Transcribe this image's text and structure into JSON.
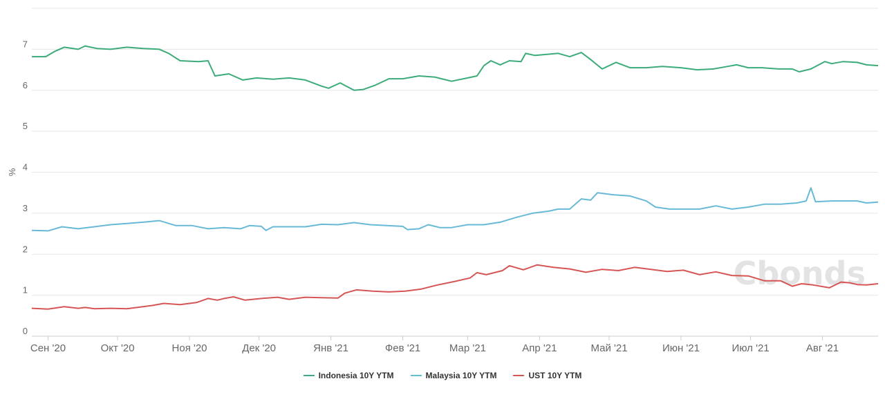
{
  "chart_data": {
    "type": "line",
    "ylabel": "%",
    "ylim": [
      0,
      8
    ],
    "yticks": [
      "0",
      "1",
      "2",
      "3",
      "4",
      "5",
      "6",
      "7"
    ],
    "xticks": [
      "Сен '20",
      "Окт '20",
      "Ноя '20",
      "Дек '20",
      "Янв '21",
      "Фев '21",
      "Мар '21",
      "Апр '21",
      "Май '21",
      "Июн '21",
      "Июл '21",
      "Авг '21"
    ],
    "xlim": [
      "2020-08-25",
      "2021-08-25"
    ],
    "grid": "horizontal",
    "legend": "bottom-center",
    "watermark": "Cbonds",
    "series": [
      {
        "name": "Indonesia 10Y YTM",
        "color": "#3bab78",
        "points": [
          [
            "2020-08-25",
            6.82
          ],
          [
            "2020-08-31",
            6.82
          ],
          [
            "2020-09-04",
            6.95
          ],
          [
            "2020-09-08",
            7.05
          ],
          [
            "2020-09-14",
            7.0
          ],
          [
            "2020-09-17",
            7.08
          ],
          [
            "2020-09-22",
            7.02
          ],
          [
            "2020-09-28",
            7.0
          ],
          [
            "2020-10-05",
            7.05
          ],
          [
            "2020-10-12",
            7.02
          ],
          [
            "2020-10-19",
            7.0
          ],
          [
            "2020-10-23",
            6.9
          ],
          [
            "2020-10-28",
            6.72
          ],
          [
            "2020-11-05",
            6.7
          ],
          [
            "2020-11-09",
            6.72
          ],
          [
            "2020-11-12",
            6.35
          ],
          [
            "2020-11-18",
            6.4
          ],
          [
            "2020-11-24",
            6.25
          ],
          [
            "2020-11-30",
            6.3
          ],
          [
            "2020-12-07",
            6.27
          ],
          [
            "2020-12-14",
            6.3
          ],
          [
            "2020-12-21",
            6.25
          ],
          [
            "2020-12-28",
            6.1
          ],
          [
            "2020-12-31",
            6.05
          ],
          [
            "2021-01-05",
            6.18
          ],
          [
            "2021-01-11",
            6.0
          ],
          [
            "2021-01-15",
            6.02
          ],
          [
            "2021-01-20",
            6.12
          ],
          [
            "2021-01-26",
            6.28
          ],
          [
            "2021-02-01",
            6.28
          ],
          [
            "2021-02-08",
            6.35
          ],
          [
            "2021-02-15",
            6.32
          ],
          [
            "2021-02-22",
            6.22
          ],
          [
            "2021-03-01",
            6.3
          ],
          [
            "2021-03-05",
            6.35
          ],
          [
            "2021-03-08",
            6.6
          ],
          [
            "2021-03-11",
            6.72
          ],
          [
            "2021-03-15",
            6.62
          ],
          [
            "2021-03-19",
            6.72
          ],
          [
            "2021-03-24",
            6.7
          ],
          [
            "2021-03-26",
            6.9
          ],
          [
            "2021-03-30",
            6.85
          ],
          [
            "2021-04-05",
            6.88
          ],
          [
            "2021-04-09",
            6.9
          ],
          [
            "2021-04-14",
            6.82
          ],
          [
            "2021-04-19",
            6.92
          ],
          [
            "2021-04-23",
            6.75
          ],
          [
            "2021-04-28",
            6.52
          ],
          [
            "2021-05-04",
            6.68
          ],
          [
            "2021-05-10",
            6.55
          ],
          [
            "2021-05-17",
            6.55
          ],
          [
            "2021-05-24",
            6.58
          ],
          [
            "2021-06-01",
            6.55
          ],
          [
            "2021-06-08",
            6.5
          ],
          [
            "2021-06-15",
            6.52
          ],
          [
            "2021-06-21",
            6.58
          ],
          [
            "2021-06-25",
            6.62
          ],
          [
            "2021-06-30",
            6.55
          ],
          [
            "2021-07-06",
            6.55
          ],
          [
            "2021-07-13",
            6.52
          ],
          [
            "2021-07-19",
            6.52
          ],
          [
            "2021-07-22",
            6.45
          ],
          [
            "2021-07-27",
            6.52
          ],
          [
            "2021-08-02",
            6.7
          ],
          [
            "2021-08-05",
            6.65
          ],
          [
            "2021-08-10",
            6.7
          ],
          [
            "2021-08-16",
            6.68
          ],
          [
            "2021-08-20",
            6.62
          ],
          [
            "2021-08-25",
            6.6
          ]
        ]
      },
      {
        "name": "Malaysia 10Y YTM",
        "color": "#68b9d6",
        "points": [
          [
            "2020-08-25",
            2.58
          ],
          [
            "2020-09-01",
            2.57
          ],
          [
            "2020-09-07",
            2.67
          ],
          [
            "2020-09-14",
            2.62
          ],
          [
            "2020-09-21",
            2.67
          ],
          [
            "2020-09-28",
            2.72
          ],
          [
            "2020-10-05",
            2.75
          ],
          [
            "2020-10-12",
            2.78
          ],
          [
            "2020-10-19",
            2.82
          ],
          [
            "2020-10-26",
            2.7
          ],
          [
            "2020-11-02",
            2.7
          ],
          [
            "2020-11-09",
            2.62
          ],
          [
            "2020-11-16",
            2.65
          ],
          [
            "2020-11-23",
            2.62
          ],
          [
            "2020-11-27",
            2.7
          ],
          [
            "2020-12-02",
            2.68
          ],
          [
            "2020-12-04",
            2.58
          ],
          [
            "2020-12-07",
            2.67
          ],
          [
            "2020-12-14",
            2.67
          ],
          [
            "2020-12-21",
            2.67
          ],
          [
            "2020-12-28",
            2.73
          ],
          [
            "2021-01-04",
            2.72
          ],
          [
            "2021-01-11",
            2.77
          ],
          [
            "2021-01-18",
            2.72
          ],
          [
            "2021-01-25",
            2.7
          ],
          [
            "2021-02-01",
            2.68
          ],
          [
            "2021-02-03",
            2.6
          ],
          [
            "2021-02-08",
            2.62
          ],
          [
            "2021-02-12",
            2.72
          ],
          [
            "2021-02-17",
            2.65
          ],
          [
            "2021-02-22",
            2.65
          ],
          [
            "2021-03-01",
            2.72
          ],
          [
            "2021-03-08",
            2.72
          ],
          [
            "2021-03-15",
            2.78
          ],
          [
            "2021-03-22",
            2.9
          ],
          [
            "2021-03-29",
            3.0
          ],
          [
            "2021-04-05",
            3.05
          ],
          [
            "2021-04-09",
            3.1
          ],
          [
            "2021-04-14",
            3.1
          ],
          [
            "2021-04-19",
            3.35
          ],
          [
            "2021-04-23",
            3.32
          ],
          [
            "2021-04-26",
            3.5
          ],
          [
            "2021-05-03",
            3.45
          ],
          [
            "2021-05-10",
            3.42
          ],
          [
            "2021-05-17",
            3.3
          ],
          [
            "2021-05-21",
            3.15
          ],
          [
            "2021-05-27",
            3.1
          ],
          [
            "2021-06-02",
            3.1
          ],
          [
            "2021-06-09",
            3.1
          ],
          [
            "2021-06-16",
            3.18
          ],
          [
            "2021-06-23",
            3.1
          ],
          [
            "2021-06-30",
            3.15
          ],
          [
            "2021-07-07",
            3.22
          ],
          [
            "2021-07-14",
            3.22
          ],
          [
            "2021-07-21",
            3.25
          ],
          [
            "2021-07-25",
            3.3
          ],
          [
            "2021-07-27",
            3.62
          ],
          [
            "2021-07-29",
            3.28
          ],
          [
            "2021-08-05",
            3.3
          ],
          [
            "2021-08-12",
            3.3
          ],
          [
            "2021-08-16",
            3.3
          ],
          [
            "2021-08-20",
            3.25
          ],
          [
            "2021-08-25",
            3.27
          ]
        ]
      },
      {
        "name": "UST 10Y YTM",
        "color": "#d65454",
        "points": [
          [
            "2020-08-25",
            0.68
          ],
          [
            "2020-09-01",
            0.66
          ],
          [
            "2020-09-08",
            0.72
          ],
          [
            "2020-09-14",
            0.68
          ],
          [
            "2020-09-17",
            0.7
          ],
          [
            "2020-09-21",
            0.67
          ],
          [
            "2020-09-28",
            0.68
          ],
          [
            "2020-10-05",
            0.67
          ],
          [
            "2020-10-12",
            0.72
          ],
          [
            "2020-10-16",
            0.75
          ],
          [
            "2020-10-21",
            0.8
          ],
          [
            "2020-10-28",
            0.77
          ],
          [
            "2020-11-04",
            0.82
          ],
          [
            "2020-11-09",
            0.92
          ],
          [
            "2020-11-13",
            0.88
          ],
          [
            "2020-11-16",
            0.92
          ],
          [
            "2020-11-20",
            0.96
          ],
          [
            "2020-11-25",
            0.88
          ],
          [
            "2020-12-02",
            0.92
          ],
          [
            "2020-12-09",
            0.95
          ],
          [
            "2020-12-14",
            0.9
          ],
          [
            "2020-12-21",
            0.95
          ],
          [
            "2020-12-28",
            0.94
          ],
          [
            "2021-01-04",
            0.93
          ],
          [
            "2021-01-07",
            1.05
          ],
          [
            "2021-01-12",
            1.13
          ],
          [
            "2021-01-19",
            1.1
          ],
          [
            "2021-01-26",
            1.08
          ],
          [
            "2021-02-02",
            1.1
          ],
          [
            "2021-02-09",
            1.15
          ],
          [
            "2021-02-16",
            1.25
          ],
          [
            "2021-02-23",
            1.33
          ],
          [
            "2021-03-02",
            1.42
          ],
          [
            "2021-03-05",
            1.55
          ],
          [
            "2021-03-09",
            1.5
          ],
          [
            "2021-03-16",
            1.6
          ],
          [
            "2021-03-19",
            1.72
          ],
          [
            "2021-03-25",
            1.62
          ],
          [
            "2021-03-31",
            1.74
          ],
          [
            "2021-04-07",
            1.68
          ],
          [
            "2021-04-14",
            1.64
          ],
          [
            "2021-04-21",
            1.56
          ],
          [
            "2021-04-28",
            1.63
          ],
          [
            "2021-05-05",
            1.6
          ],
          [
            "2021-05-12",
            1.68
          ],
          [
            "2021-05-19",
            1.63
          ],
          [
            "2021-05-26",
            1.58
          ],
          [
            "2021-06-02",
            1.61
          ],
          [
            "2021-06-09",
            1.5
          ],
          [
            "2021-06-16",
            1.57
          ],
          [
            "2021-06-23",
            1.48
          ],
          [
            "2021-06-30",
            1.47
          ],
          [
            "2021-07-07",
            1.35
          ],
          [
            "2021-07-14",
            1.35
          ],
          [
            "2021-07-19",
            1.22
          ],
          [
            "2021-07-23",
            1.28
          ],
          [
            "2021-07-28",
            1.25
          ],
          [
            "2021-08-04",
            1.18
          ],
          [
            "2021-08-09",
            1.32
          ],
          [
            "2021-08-13",
            1.3
          ],
          [
            "2021-08-16",
            1.26
          ],
          [
            "2021-08-20",
            1.25
          ],
          [
            "2021-08-25",
            1.28
          ]
        ]
      }
    ]
  }
}
